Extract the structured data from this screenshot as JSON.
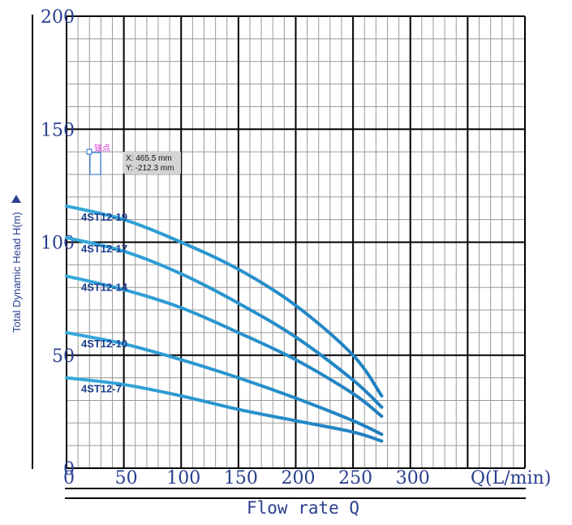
{
  "chart_data": {
    "type": "line",
    "title": "",
    "xlabel": "Flow  rate Q",
    "ylabel": "Total Dynamic Head H(m)",
    "xunit": "Q(L/min)",
    "xlim": [
      0,
      400
    ],
    "ylim": [
      0,
      200
    ],
    "x_ticks": [
      "0",
      "50",
      "100",
      "150",
      "200",
      "250",
      "300"
    ],
    "y_ticks": [
      "0",
      "50",
      "100",
      "150",
      "200"
    ],
    "grid": true,
    "line_color": "#1f7fc0",
    "series": [
      {
        "name": "4ST12-19",
        "x": [
          0,
          50,
          100,
          150,
          200,
          250,
          275
        ],
        "y": [
          116,
          110,
          100,
          88,
          72,
          50,
          32
        ]
      },
      {
        "name": "4ST12-17",
        "x": [
          0,
          50,
          100,
          150,
          200,
          250,
          275
        ],
        "y": [
          102,
          96,
          86,
          73,
          58,
          39,
          27
        ]
      },
      {
        "name": "4ST12-14",
        "x": [
          0,
          50,
          100,
          150,
          200,
          250,
          275
        ],
        "y": [
          85,
          79,
          71,
          60,
          48,
          33,
          23
        ]
      },
      {
        "name": "4ST12-10",
        "x": [
          0,
          50,
          100,
          150,
          200,
          250,
          275
        ],
        "y": [
          60,
          55,
          48,
          40,
          31,
          21,
          15
        ]
      },
      {
        "name": "4ST12-7",
        "x": [
          0,
          50,
          100,
          150,
          200,
          250,
          275
        ],
        "y": [
          40,
          37,
          32,
          26,
          21,
          16,
          12
        ]
      }
    ]
  },
  "overlay": {
    "anchor_label": "锚点",
    "coord_x": "X: 465.5 mm",
    "coord_y": "Y: -212.3 mm"
  }
}
